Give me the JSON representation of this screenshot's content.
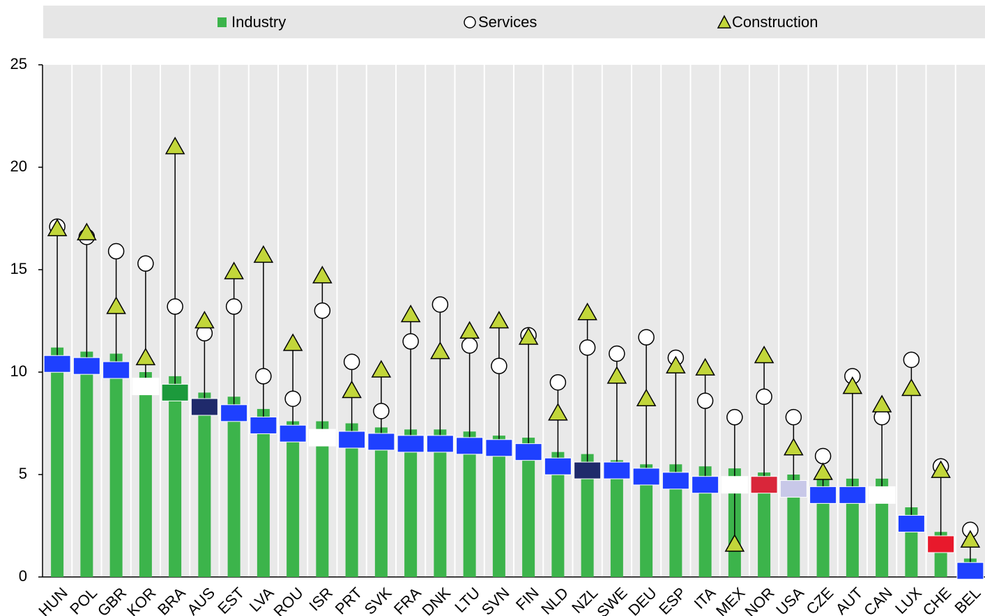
{
  "chart_data": {
    "type": "bar",
    "categories": [
      "HUN",
      "POL",
      "GBR",
      "KOR",
      "BRA",
      "AUS",
      "EST",
      "LVA",
      "ROU",
      "ISR",
      "PRT",
      "SVK",
      "FRA",
      "DNK",
      "LTU",
      "SVN",
      "FIN",
      "NLD",
      "NZL",
      "SWE",
      "DEU",
      "ESP",
      "ITA",
      "MEX",
      "NOR",
      "USA",
      "CZE",
      "AUT",
      "CAN",
      "LUX",
      "CHE",
      "BEL"
    ],
    "series": [
      {
        "name": "Industry",
        "mark": "bar",
        "color": "#3cb44b",
        "values": [
          11.2,
          11.0,
          10.9,
          10.0,
          9.8,
          9.0,
          8.8,
          8.2,
          7.6,
          7.6,
          7.5,
          7.3,
          7.2,
          7.2,
          7.1,
          6.9,
          6.8,
          6.1,
          6.0,
          5.7,
          5.5,
          5.5,
          5.4,
          5.3,
          5.1,
          5.0,
          4.9,
          4.8,
          4.8,
          3.4,
          2.2,
          0.9
        ]
      },
      {
        "name": "Services",
        "mark": "circle",
        "color": "#ffffff",
        "values": [
          17.1,
          16.6,
          15.9,
          15.3,
          13.2,
          11.9,
          13.2,
          9.8,
          8.7,
          13.0,
          10.5,
          8.1,
          11.5,
          13.3,
          11.3,
          10.3,
          11.8,
          9.5,
          11.2,
          10.9,
          11.7,
          10.7,
          8.6,
          7.8,
          8.8,
          7.8,
          5.9,
          9.8,
          7.8,
          10.6,
          5.4,
          2.3
        ]
      },
      {
        "name": "Construction",
        "mark": "triangle",
        "color": "#c2d63a",
        "values": [
          17.0,
          16.8,
          13.2,
          10.7,
          21.0,
          12.5,
          14.9,
          15.7,
          11.4,
          14.7,
          9.1,
          10.1,
          12.8,
          11.0,
          12.0,
          12.5,
          11.7,
          8.0,
          12.9,
          9.8,
          8.7,
          10.3,
          10.2,
          1.6,
          10.8,
          6.3,
          5.1,
          9.3,
          8.4,
          9.2,
          5.2,
          1.8
        ]
      }
    ],
    "markers": {
      "values": [
        10.4,
        10.3,
        10.1,
        9.3,
        9.0,
        8.3,
        8.0,
        7.4,
        7.0,
        6.8,
        6.7,
        6.6,
        6.5,
        6.5,
        6.4,
        6.3,
        6.1,
        5.4,
        5.2,
        5.2,
        4.9,
        4.7,
        4.5,
        4.5,
        4.5,
        4.3,
        4.0,
        4.0,
        4.0,
        2.6,
        1.6,
        0.3
      ],
      "colors": [
        "#1e40ff",
        "#1e40ff",
        "#1e40ff",
        "#ffffff",
        "#1c9a3c",
        "#1f2a6b",
        "#1e40ff",
        "#1e40ff",
        "#1e40ff",
        "#ffffff",
        "#1e40ff",
        "#1e40ff",
        "#1e40ff",
        "#1e40ff",
        "#1e40ff",
        "#1e40ff",
        "#1e40ff",
        "#1e40ff",
        "#1f2a6b",
        "#1e40ff",
        "#1e40ff",
        "#1e40ff",
        "#1e40ff",
        "#ffffff",
        "#d9263a",
        "#c8c8e8",
        "#1e40ff",
        "#1e40ff",
        "#ffffff",
        "#1e40ff",
        "#e8192c",
        "#1e40ff"
      ]
    },
    "ylim": [
      0,
      25
    ],
    "yticks": [
      0,
      5,
      10,
      15,
      20,
      25
    ],
    "grid": true
  }
}
